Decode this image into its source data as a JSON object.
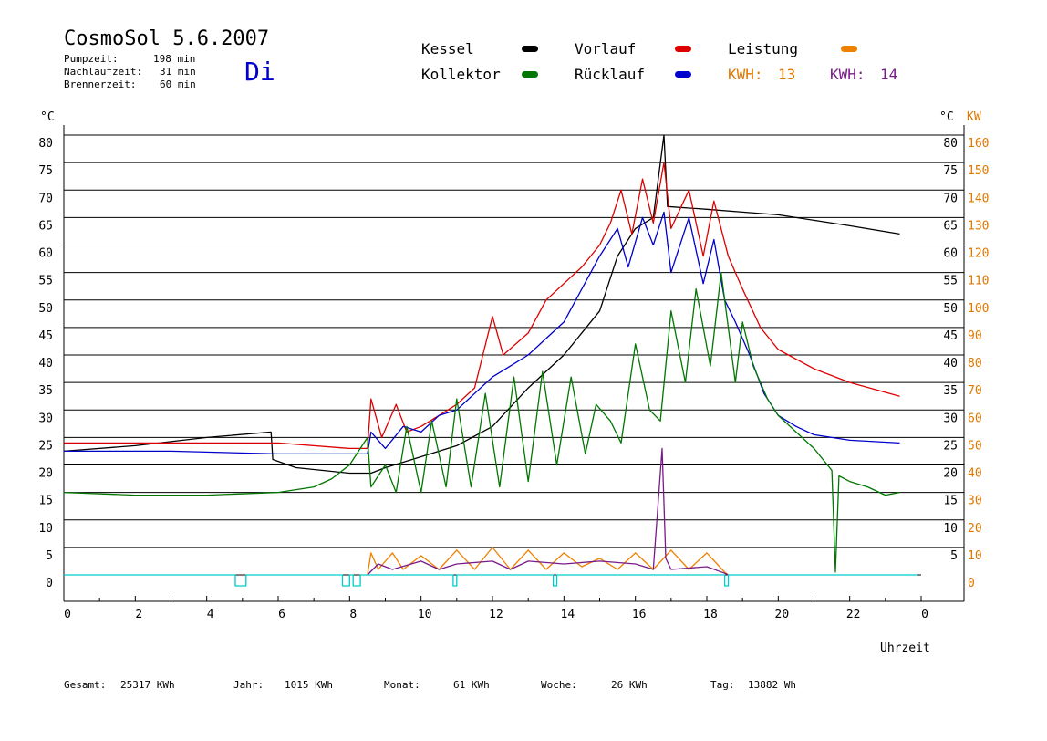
{
  "title": "CosmoSol 5.6.2007",
  "day": "Di",
  "stats": [
    {
      "label": "Pumpzeit:",
      "value": "198 min"
    },
    {
      "label": "Nachlaufzeit:",
      "value": "31 min"
    },
    {
      "label": "Brennerzeit:",
      "value": "60 min"
    }
  ],
  "legend": {
    "kessel": "Kessel",
    "vorlauf": "Vorlauf",
    "leistung": "Leistung",
    "kollektor": "Kollektor",
    "ruecklauf": "Rücklauf",
    "kwh1_label": "KWH:",
    "kwh1_value": "13",
    "kwh2_label": "KWH:",
    "kwh2_value": "14"
  },
  "colors": {
    "kessel": "#000000",
    "vorlauf": "#dd0000",
    "ruecklauf": "#0000cc",
    "kollektor": "#007700",
    "leistung": "#f08000",
    "kwh2": "#7a1a8a",
    "pump": "#00cccc"
  },
  "footer": [
    {
      "label": "Gesamt:",
      "value": "25317 KWh"
    },
    {
      "label": "Jahr:",
      "value": "1015 KWh"
    },
    {
      "label": "Monat:",
      "value": "61 KWh"
    },
    {
      "label": "Woche:",
      "value": "26 KWh"
    },
    {
      "label": "Tag:",
      "value": "13882 Wh"
    }
  ],
  "chart_data": {
    "type": "line",
    "title": "CosmoSol 5.6.2007",
    "xlabel": "Uhrzeit",
    "ylabel_left": "°C",
    "ylabel_right_temp": "°C",
    "ylabel_right_power": "KW",
    "x_ticks": [
      "0",
      "2",
      "4",
      "6",
      "8",
      "10",
      "12",
      "14",
      "16",
      "18",
      "20",
      "22",
      "0"
    ],
    "xlim": [
      0,
      24
    ],
    "ylim": [
      0,
      80
    ],
    "y_ticks_left": [
      "0",
      "5",
      "10",
      "15",
      "20",
      "25",
      "30",
      "35",
      "40",
      "45",
      "50",
      "55",
      "60",
      "65",
      "70",
      "75",
      "80"
    ],
    "y_ticks_right_temp": [
      "5",
      "10",
      "15",
      "20",
      "25",
      "30",
      "35",
      "40",
      "45",
      "50",
      "55",
      "60",
      "65",
      "70",
      "75",
      "80"
    ],
    "y_ticks_right_power": [
      "0",
      "10",
      "20",
      "30",
      "40",
      "50",
      "60",
      "70",
      "80",
      "90",
      "100",
      "110",
      "120",
      "130",
      "140",
      "150",
      "160"
    ],
    "grid": true,
    "series": [
      {
        "name": "Kessel",
        "color": "#000000",
        "points": [
          [
            0,
            22.5
          ],
          [
            2,
            23.5
          ],
          [
            4,
            25
          ],
          [
            5.8,
            26
          ],
          [
            5.85,
            21
          ],
          [
            6.5,
            19.5
          ],
          [
            8,
            18.5
          ],
          [
            8.6,
            18.5
          ],
          [
            9,
            19.5
          ],
          [
            10,
            21.5
          ],
          [
            11,
            23.5
          ],
          [
            12,
            27
          ],
          [
            13,
            34
          ],
          [
            14,
            40
          ],
          [
            15,
            48
          ],
          [
            15.5,
            58
          ],
          [
            16,
            63
          ],
          [
            16.5,
            65
          ],
          [
            16.8,
            80
          ],
          [
            16.9,
            67
          ],
          [
            18,
            66.5
          ],
          [
            19,
            66
          ],
          [
            20,
            65.5
          ],
          [
            21,
            64.5
          ],
          [
            22,
            63.5
          ],
          [
            23.4,
            62
          ]
        ]
      },
      {
        "name": "Vorlauf",
        "color": "#dd0000",
        "points": [
          [
            0,
            24
          ],
          [
            3,
            24
          ],
          [
            6,
            24
          ],
          [
            8,
            23
          ],
          [
            8.5,
            23
          ],
          [
            8.6,
            32
          ],
          [
            8.9,
            25
          ],
          [
            9.3,
            31
          ],
          [
            9.6,
            26
          ],
          [
            10,
            27
          ],
          [
            10.5,
            29
          ],
          [
            11,
            31
          ],
          [
            11.5,
            34
          ],
          [
            12,
            47
          ],
          [
            12.3,
            40
          ],
          [
            13,
            44
          ],
          [
            13.5,
            50
          ],
          [
            14,
            53
          ],
          [
            14.5,
            56
          ],
          [
            15,
            60
          ],
          [
            15.3,
            64
          ],
          [
            15.6,
            70
          ],
          [
            15.9,
            62
          ],
          [
            16.2,
            72
          ],
          [
            16.5,
            64
          ],
          [
            16.8,
            75
          ],
          [
            17,
            63
          ],
          [
            17.5,
            70
          ],
          [
            17.9,
            58
          ],
          [
            18.2,
            68
          ],
          [
            18.6,
            58
          ],
          [
            19,
            52
          ],
          [
            19.5,
            45
          ],
          [
            20,
            41
          ],
          [
            21,
            37.5
          ],
          [
            22,
            35
          ],
          [
            23.4,
            32.5
          ]
        ]
      },
      {
        "name": "Rücklauf",
        "color": "#0000cc",
        "points": [
          [
            0,
            22.5
          ],
          [
            3,
            22.5
          ],
          [
            6,
            22
          ],
          [
            8,
            22
          ],
          [
            8.5,
            22
          ],
          [
            8.6,
            26
          ],
          [
            9,
            23
          ],
          [
            9.5,
            27
          ],
          [
            10,
            26
          ],
          [
            10.5,
            29
          ],
          [
            11,
            30
          ],
          [
            11.5,
            33
          ],
          [
            12,
            36
          ],
          [
            12.5,
            38
          ],
          [
            13,
            40
          ],
          [
            13.5,
            43
          ],
          [
            14,
            46
          ],
          [
            14.5,
            52
          ],
          [
            15,
            58
          ],
          [
            15.5,
            63
          ],
          [
            15.8,
            56
          ],
          [
            16.2,
            65
          ],
          [
            16.5,
            60
          ],
          [
            16.8,
            66
          ],
          [
            17,
            55
          ],
          [
            17.5,
            65
          ],
          [
            17.9,
            53
          ],
          [
            18.2,
            61
          ],
          [
            18.5,
            50
          ],
          [
            18.8,
            46
          ],
          [
            19.2,
            40
          ],
          [
            19.6,
            33
          ],
          [
            20,
            29
          ],
          [
            20.5,
            27
          ],
          [
            21,
            25.5
          ],
          [
            22,
            24.5
          ],
          [
            23.4,
            24
          ]
        ]
      },
      {
        "name": "Kollektor",
        "color": "#007700",
        "points": [
          [
            0,
            15
          ],
          [
            2,
            14.5
          ],
          [
            4,
            14.5
          ],
          [
            6,
            15
          ],
          [
            7,
            16
          ],
          [
            7.5,
            17.5
          ],
          [
            8,
            20
          ],
          [
            8.5,
            25
          ],
          [
            8.6,
            16
          ],
          [
            9,
            20
          ],
          [
            9.3,
            15
          ],
          [
            9.6,
            27
          ],
          [
            10,
            15
          ],
          [
            10.3,
            28
          ],
          [
            10.7,
            16
          ],
          [
            11,
            32
          ],
          [
            11.4,
            16
          ],
          [
            11.8,
            33
          ],
          [
            12.2,
            16
          ],
          [
            12.6,
            36
          ],
          [
            13,
            17
          ],
          [
            13.4,
            37
          ],
          [
            13.8,
            20
          ],
          [
            14.2,
            36
          ],
          [
            14.6,
            22
          ],
          [
            14.9,
            31
          ],
          [
            15.3,
            28
          ],
          [
            15.6,
            24
          ],
          [
            16,
            42
          ],
          [
            16.4,
            30
          ],
          [
            16.7,
            28
          ],
          [
            17,
            48
          ],
          [
            17.4,
            35
          ],
          [
            17.7,
            52
          ],
          [
            18.1,
            38
          ],
          [
            18.4,
            55
          ],
          [
            18.8,
            35
          ],
          [
            19,
            46
          ],
          [
            19.3,
            38
          ],
          [
            19.7,
            32
          ],
          [
            20,
            29
          ],
          [
            20.5,
            26
          ],
          [
            21,
            23
          ],
          [
            21.5,
            19
          ],
          [
            21.6,
            0.5
          ],
          [
            21.7,
            18
          ],
          [
            22,
            17
          ],
          [
            22.5,
            16
          ],
          [
            23,
            14.5
          ],
          [
            23.4,
            15
          ]
        ]
      },
      {
        "name": "Leistung",
        "color": "#f08000",
        "points": [
          [
            8.5,
            0
          ],
          [
            8.6,
            4
          ],
          [
            8.8,
            1
          ],
          [
            9.2,
            4
          ],
          [
            9.5,
            1
          ],
          [
            10,
            3.5
          ],
          [
            10.5,
            1
          ],
          [
            11,
            4.5
          ],
          [
            11.5,
            1
          ],
          [
            12,
            5
          ],
          [
            12.5,
            1
          ],
          [
            13,
            4.5
          ],
          [
            13.5,
            1
          ],
          [
            14,
            4
          ],
          [
            14.5,
            1.5
          ],
          [
            15,
            3
          ],
          [
            15.5,
            1
          ],
          [
            16,
            4
          ],
          [
            16.5,
            1
          ],
          [
            17,
            4.5
          ],
          [
            17.5,
            1
          ],
          [
            18,
            4
          ],
          [
            18.5,
            0.5
          ],
          [
            18.6,
            0
          ]
        ]
      },
      {
        "name": "KWH",
        "color": "#7a1a8a",
        "points": [
          [
            8.5,
            0
          ],
          [
            8.8,
            2
          ],
          [
            9.2,
            1
          ],
          [
            10,
            2.5
          ],
          [
            10.5,
            1
          ],
          [
            11,
            2
          ],
          [
            12,
            2.5
          ],
          [
            12.5,
            1
          ],
          [
            13,
            2.5
          ],
          [
            14,
            2
          ],
          [
            15,
            2.5
          ],
          [
            16,
            2
          ],
          [
            16.5,
            1
          ],
          [
            16.75,
            23
          ],
          [
            16.85,
            3
          ],
          [
            17,
            1
          ],
          [
            18,
            1.5
          ],
          [
            18.5,
            0.3
          ],
          [
            18.6,
            0
          ]
        ]
      },
      {
        "name": "Pumpe",
        "color": "#00cccc",
        "points": [
          [
            0,
            0
          ],
          [
            4.8,
            0
          ],
          [
            4.8,
            -2
          ],
          [
            5.1,
            -2
          ],
          [
            5.1,
            0
          ],
          [
            7.8,
            0
          ],
          [
            7.8,
            -2
          ],
          [
            8.0,
            -2
          ],
          [
            8.0,
            0
          ],
          [
            8.1,
            0
          ],
          [
            8.1,
            -2
          ],
          [
            8.3,
            -2
          ],
          [
            8.3,
            0
          ],
          [
            10.9,
            0
          ],
          [
            10.9,
            -2
          ],
          [
            11.0,
            -2
          ],
          [
            11.0,
            0
          ],
          [
            13.7,
            0
          ],
          [
            13.7,
            -2
          ],
          [
            13.8,
            -2
          ],
          [
            13.8,
            0
          ],
          [
            18.5,
            0
          ],
          [
            18.5,
            -2
          ],
          [
            18.6,
            -2
          ],
          [
            18.6,
            0
          ],
          [
            23.9,
            0
          ]
        ]
      }
    ]
  }
}
